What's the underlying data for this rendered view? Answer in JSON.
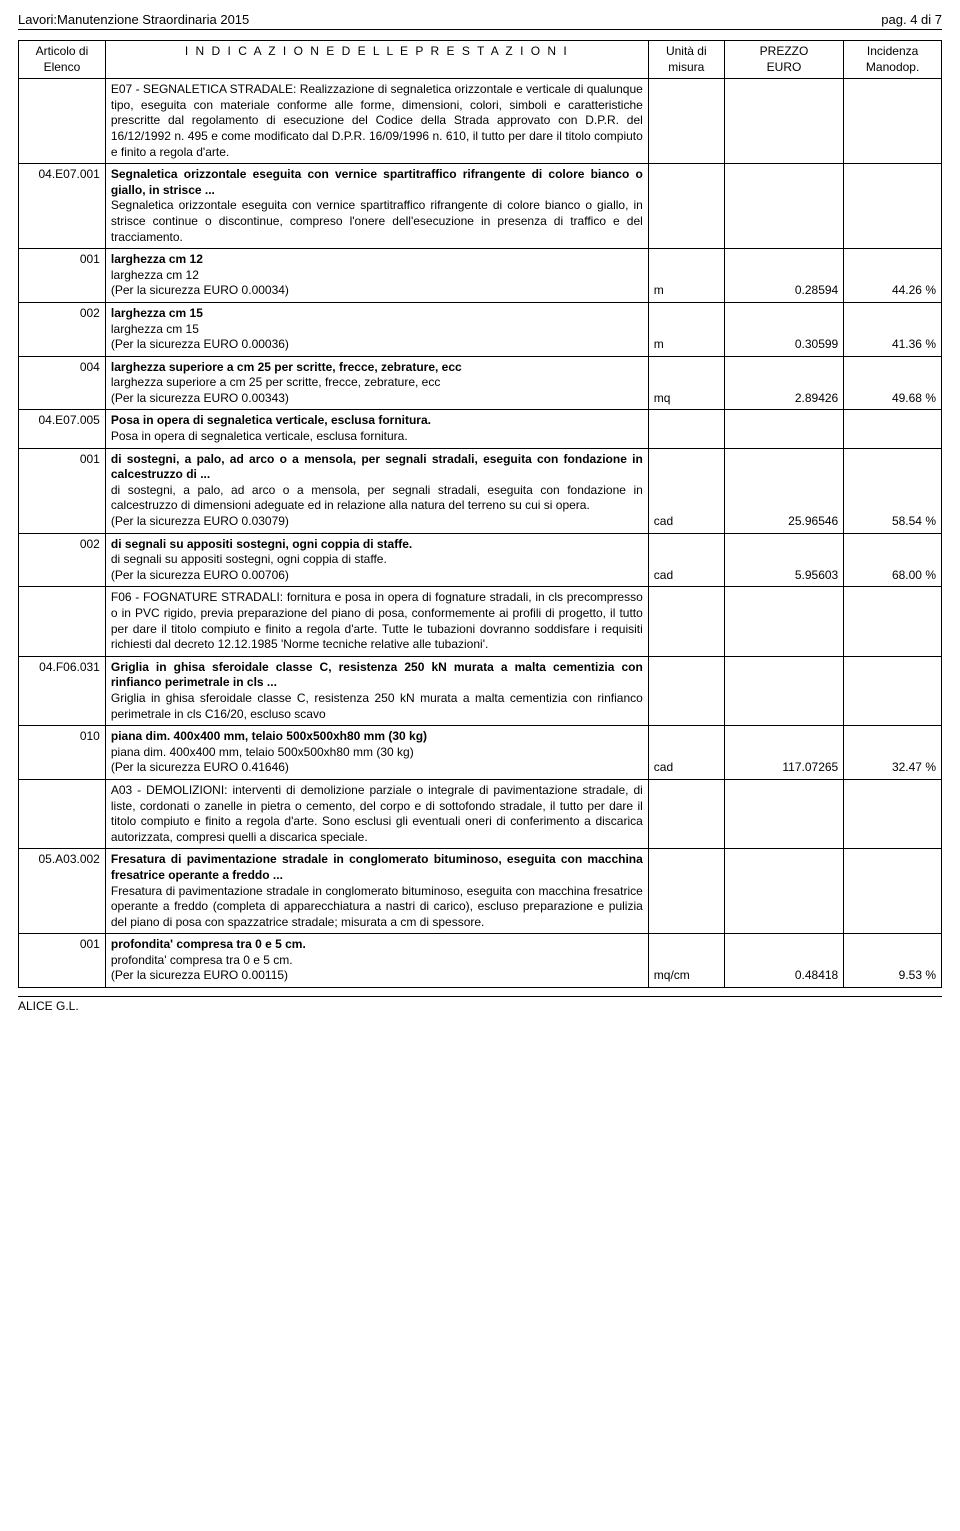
{
  "header": {
    "left": "Lavori:Manutenzione Straordinaria 2015",
    "right": "pag. 4 di 7"
  },
  "columns": {
    "c1a": "Articolo di",
    "c1b": "Elenco",
    "c2": "I N D I C A Z I O N E   D E L L E   P R E S T A Z I O N I",
    "c3a": "Unità di",
    "c3b": "misura",
    "c4a": "PREZZO",
    "c4b": "EURO",
    "c5a": "Incidenza",
    "c5b": "Manodop."
  },
  "sections": {
    "e07_intro": "E07 - SEGNALETICA STRADALE: Realizzazione di segnaletica orizzontale e verticale di qualunque tipo, eseguita con materiale conforme alle forme, dimensioni, colori, simboli e caratteristiche prescritte dal regolamento di esecuzione del Codice della Strada approvato con D.P.R. del 16/12/1992 n. 495 e come modificato dal D.P.R. 16/09/1996 n. 610, il tutto per dare il titolo compiuto e finito a regola d'arte.",
    "f06_intro": "F06 - FOGNATURE STRADALI: fornitura e posa in opera di fognature stradali, in cls precompresso o in PVC rigido, previa preparazione del piano di posa, conformemente ai profili di progetto, il tutto per dare il titolo compiuto e finito a regola d'arte. Tutte le tubazioni dovranno soddisfare i requisiti richiesti dal decreto 12.12.1985 'Norme tecniche relative alle tubazioni'.",
    "a03_intro": "A03 - DEMOLIZIONI: interventi di demolizione parziale o integrale di pavimentazione stradale, di liste, cordonati o zanelle in pietra o cemento, del corpo e di sottofondo stradale, il tutto per dare il titolo compiuto e finito a regola d'arte. Sono esclusi gli eventuali oneri di conferimento a discarica autorizzata, compresi quelli a discarica speciale."
  },
  "items": {
    "e07_001": {
      "code": "04.E07.001",
      "title": "Segnaletica orizzontale eseguita con vernice spartitraffico rifrangente di colore bianco o giallo, in strisce ...",
      "desc": "Segnaletica orizzontale eseguita con vernice spartitraffico rifrangente di colore bianco o giallo, in strisce continue o discontinue, compreso l'onere dell'esecuzione in presenza di traffico e del tracciamento.",
      "sub001": {
        "code": "001",
        "title": "larghezza cm 12",
        "desc": "larghezza cm 12",
        "sic": "(Per la sicurezza EURO 0.00034)",
        "unit": "m",
        "price": "0.28594",
        "inc": "44.26 %"
      },
      "sub002": {
        "code": "002",
        "title": "larghezza cm 15",
        "desc": "larghezza cm 15",
        "sic": "(Per la sicurezza EURO 0.00036)",
        "unit": "m",
        "price": "0.30599",
        "inc": "41.36 %"
      },
      "sub004": {
        "code": "004",
        "title": "larghezza superiore a cm 25 per scritte, frecce, zebrature, ecc",
        "desc": "larghezza superiore a cm 25 per scritte, frecce, zebrature, ecc",
        "sic": "(Per la sicurezza EURO 0.00343)",
        "unit": "mq",
        "price": "2.89426",
        "inc": "49.68 %"
      }
    },
    "e07_005": {
      "code": "04.E07.005",
      "title": "Posa in opera di segnaletica verticale, esclusa fornitura.",
      "desc": "Posa in opera di segnaletica verticale, esclusa fornitura.",
      "sub001": {
        "code": "001",
        "title": "di sostegni, a palo, ad arco o a mensola, per segnali stradali, eseguita con fondazione in calcestruzzo di ...",
        "desc": "di sostegni, a palo, ad arco o a mensola, per segnali stradali, eseguita con fondazione in calcestruzzo di dimensioni adeguate ed in relazione alla natura del terreno su cui si opera.",
        "sic": "(Per la sicurezza EURO 0.03079)",
        "unit": "cad",
        "price": "25.96546",
        "inc": "58.54 %"
      },
      "sub002": {
        "code": "002",
        "title": "di segnali su appositi sostegni, ogni coppia di staffe.",
        "desc": "di segnali su appositi sostegni, ogni coppia di staffe.",
        "sic": "(Per la sicurezza EURO 0.00706)",
        "unit": "cad",
        "price": "5.95603",
        "inc": "68.00 %"
      }
    },
    "f06_031": {
      "code": "04.F06.031",
      "title": "Griglia in ghisa sferoidale classe C, resistenza 250 kN murata a malta cementizia con rinfianco perimetrale in cls ...",
      "desc": "Griglia in ghisa sferoidale classe C, resistenza 250 kN murata a malta cementizia con rinfianco perimetrale in cls C16/20, escluso scavo",
      "sub010": {
        "code": "010",
        "title": "piana dim. 400x400 mm, telaio 500x500xh80 mm (30 kg)",
        "desc": "piana dim. 400x400 mm, telaio 500x500xh80 mm (30 kg)",
        "sic": "(Per la sicurezza EURO 0.41646)",
        "unit": "cad",
        "price": "117.07265",
        "inc": "32.47 %"
      }
    },
    "a03_002": {
      "code": "05.A03.002",
      "title": "Fresatura di pavimentazione stradale in conglomerato bituminoso, eseguita con macchina fresatrice operante a freddo ...",
      "desc": "Fresatura di pavimentazione stradale in conglomerato bituminoso, eseguita con macchina fresatrice operante a freddo (completa di apparecchiatura a nastri di carico), escluso preparazione e pulizia del piano di posa con spazzatrice stradale; misurata a cm di spessore.",
      "sub001": {
        "code": "001",
        "title": "profondita' compresa tra 0 e 5 cm.",
        "desc": "profondita' compresa tra 0 e 5 cm.",
        "sic": "(Per la sicurezza EURO 0.00115)",
        "unit": "mq/cm",
        "price": "0.48418",
        "inc": "9.53 %"
      }
    }
  },
  "footer": "ALICE G.L."
}
